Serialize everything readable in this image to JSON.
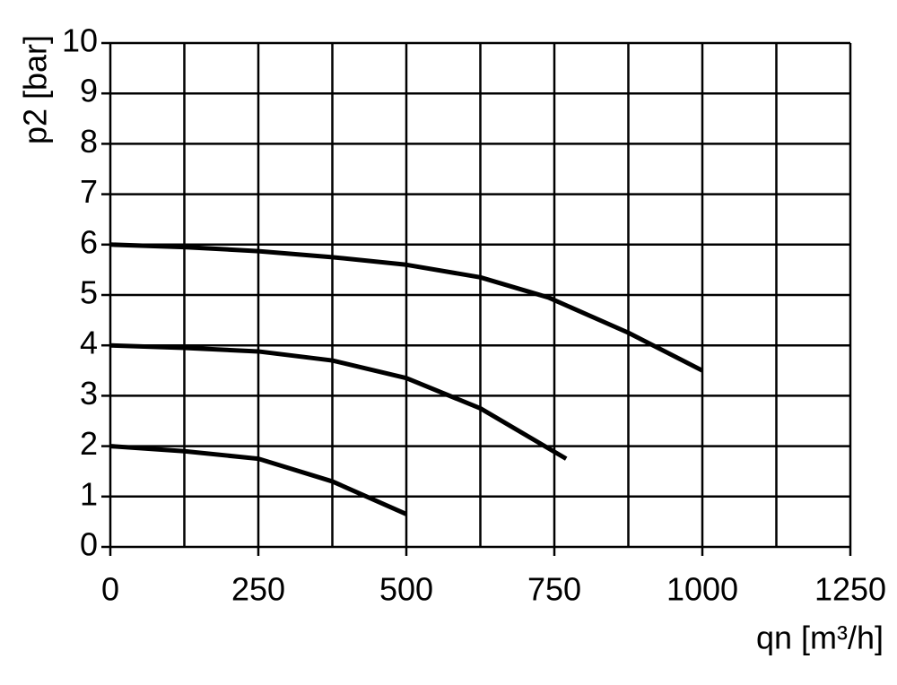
{
  "chart_data": {
    "type": "line",
    "x_label": "qn [m³/h]",
    "y_label": "p2 [bar]",
    "xlim": [
      0,
      1250
    ],
    "ylim": [
      0,
      10
    ],
    "xticks": [
      0,
      250,
      500,
      750,
      1000,
      1250
    ],
    "yticks": [
      0,
      1,
      2,
      3,
      4,
      5,
      6,
      7,
      8,
      9,
      10
    ],
    "xgrid": [
      0,
      125,
      250,
      375,
      500,
      625,
      750,
      875,
      1000,
      1125,
      1250
    ],
    "grid": true,
    "series": [
      {
        "color": "#000000",
        "x": [
          0,
          125,
          250,
          375,
          500,
          625,
          740,
          875,
          1000
        ],
        "values": [
          6.0,
          5.95,
          5.87,
          5.75,
          5.6,
          5.35,
          4.95,
          4.25,
          3.5
        ]
      },
      {
        "color": "#000000",
        "x": [
          0,
          125,
          250,
          375,
          500,
          625,
          770
        ],
        "values": [
          4.0,
          3.95,
          3.88,
          3.7,
          3.35,
          2.75,
          1.75
        ]
      },
      {
        "color": "#000000",
        "x": [
          0,
          125,
          250,
          375,
          500
        ],
        "values": [
          2.0,
          1.9,
          1.75,
          1.3,
          0.65
        ]
      }
    ]
  }
}
